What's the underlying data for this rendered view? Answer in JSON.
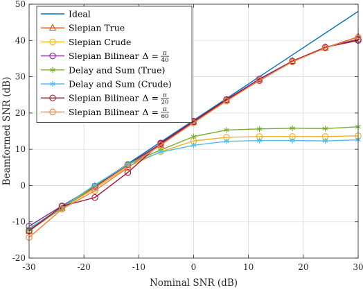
{
  "chart_data": {
    "type": "line",
    "xlabel": "Nominal SNR (dB)",
    "ylabel": "Beamformed SNR (dB)",
    "xlim": [
      -30,
      30
    ],
    "ylim": [
      -20,
      50
    ],
    "xticks": [
      -30,
      -20,
      -10,
      0,
      10,
      20,
      30
    ],
    "yticks": [
      -20,
      -10,
      0,
      10,
      20,
      30,
      40,
      50
    ],
    "xtick_labels": [
      "-30",
      "-20",
      "-10",
      "0",
      "10",
      "20",
      "30"
    ],
    "ytick_labels": [
      "-20",
      "-10",
      "0",
      "10",
      "20",
      "30",
      "40",
      "50"
    ],
    "grid": true,
    "legend_position": "top-left",
    "series": [
      {
        "name": "Ideal",
        "color": "#0072BD",
        "marker": "none",
        "x": [
          -30,
          30
        ],
        "y": [
          -12,
          48
        ]
      },
      {
        "name": "Slepian True",
        "color": "#D95319",
        "marker": "triangle",
        "x": [
          -30,
          -24,
          -18,
          -12,
          -6,
          0,
          6,
          12,
          18,
          24,
          30
        ],
        "y": [
          -12.5,
          -6.2,
          -0.4,
          5.6,
          11.2,
          17.5,
          23.5,
          29.2,
          34.3,
          38.0,
          41.0
        ]
      },
      {
        "name": "Slepian Crude",
        "color": "#EDB120",
        "marker": "circle",
        "x": [
          -30,
          -24,
          -18,
          -12,
          -6,
          0,
          6,
          12,
          18,
          24,
          30
        ],
        "y": [
          -12.3,
          -6.2,
          -0.8,
          5.2,
          9.3,
          12.3,
          13.3,
          13.5,
          13.5,
          13.5,
          13.7
        ]
      },
      {
        "name": "Slepian Bilinear",
        "name_math": {
          "num": "π",
          "den": "40"
        },
        "color": "#7E2F8E",
        "marker": "circle",
        "x": [
          -30,
          -24,
          -18,
          -12,
          -6,
          0,
          6,
          12,
          18,
          24,
          30
        ],
        "y": [
          -11.2,
          -5.6,
          -0.2,
          5.8,
          11.5,
          17.6,
          23.7,
          29.4,
          34.3,
          38.1,
          40.3
        ]
      },
      {
        "name": "Delay and Sum (True)",
        "color": "#77AC30",
        "marker": "asterisk",
        "x": [
          -30,
          -24,
          -18,
          -12,
          -6,
          0,
          6,
          12,
          18,
          24,
          30
        ],
        "y": [
          -12.2,
          -6.3,
          0.0,
          6.0,
          9.8,
          13.5,
          15.3,
          15.6,
          15.8,
          15.7,
          16.2
        ]
      },
      {
        "name": "Delay and Sum (Crude)",
        "color": "#4DBEEE",
        "marker": "asterisk",
        "x": [
          -30,
          -24,
          -18,
          -12,
          -6,
          0,
          6,
          12,
          18,
          24,
          30
        ],
        "y": [
          -11.8,
          -6.0,
          0.2,
          5.8,
          9.2,
          11.1,
          12.2,
          12.4,
          12.4,
          12.3,
          12.6
        ]
      },
      {
        "name": "Slepian Bilinear",
        "name_math": {
          "num": "π",
          "den": "20"
        },
        "color": "#A2142F",
        "marker": "circle",
        "x": [
          -30,
          -24,
          -18,
          -12,
          -6,
          0,
          6,
          12,
          18,
          24,
          30
        ],
        "y": [
          -12.5,
          -5.7,
          -3.3,
          3.6,
          11.7,
          17.7,
          23.7,
          28.9,
          34.3,
          38.1,
          40.0
        ]
      },
      {
        "name": "Slepian Bilinear",
        "name_math": {
          "num": "π",
          "den": "60"
        },
        "color": "#F07F3C",
        "marker": "circle",
        "x": [
          -30,
          -24,
          -18,
          -12,
          -6,
          0,
          6,
          12,
          18,
          24,
          30
        ],
        "y": [
          -14.3,
          -6.5,
          -1.4,
          4.9,
          11.2,
          17.3,
          23.3,
          29.0,
          34.1,
          37.9,
          40.9
        ]
      }
    ]
  }
}
